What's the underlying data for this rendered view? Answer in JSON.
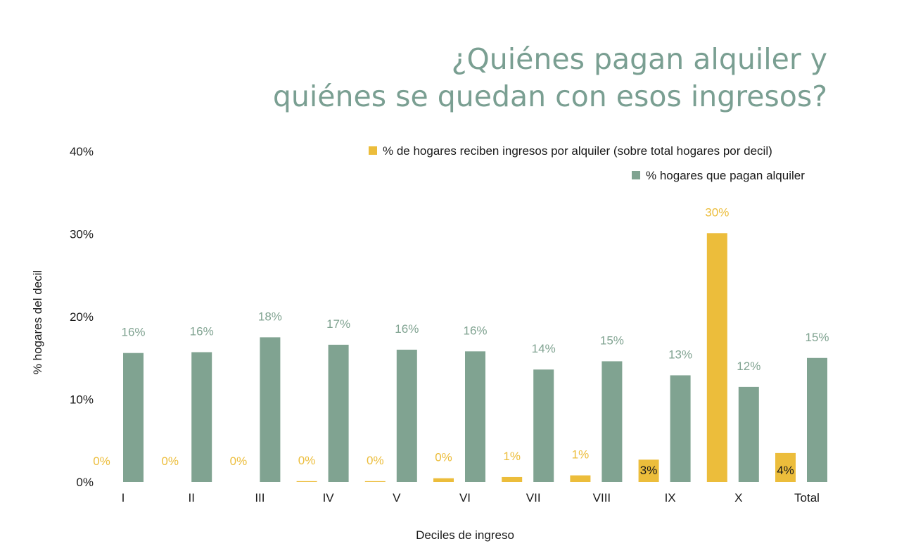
{
  "chart_data": {
    "type": "bar",
    "title": [
      "¿Quiénes pagan alquiler y",
      "quiénes se quedan con esos ingresos?"
    ],
    "xlabel": "Deciles de ingreso",
    "ylabel": "% hogares del decil",
    "ylim": [
      0,
      40
    ],
    "yticks": [
      "0%",
      "10%",
      "20%",
      "30%",
      "40%"
    ],
    "ytick_values": [
      0,
      10,
      20,
      30,
      40
    ],
    "grid": false,
    "legend_position": "top-right",
    "categories": [
      "I",
      "II",
      "III",
      "IV",
      "V",
      "VI",
      "VII",
      "VIII",
      "IX",
      "X",
      "Total"
    ],
    "series": [
      {
        "name": "% de hogares reciben ingresos por alquiler (sobre total hogares por decil)",
        "color": "#ecbd3b",
        "values": [
          0,
          0,
          0,
          0.1,
          0.1,
          0.45,
          0.6,
          0.8,
          2.7,
          30.1,
          3.5
        ],
        "labels": [
          "0%",
          "0%",
          "0%",
          "0%",
          "0%",
          "0%",
          "1%",
          "1%",
          "3%",
          "30%",
          "4%"
        ]
      },
      {
        "name": "% hogares que pagan alquiler",
        "color": "#80a391",
        "values": [
          15.6,
          15.7,
          17.5,
          16.6,
          16.0,
          15.8,
          13.6,
          14.6,
          12.9,
          11.5,
          15.0
        ],
        "labels": [
          "16%",
          "16%",
          "18%",
          "17%",
          "16%",
          "16%",
          "14%",
          "15%",
          "13%",
          "12%",
          "15%"
        ]
      }
    ]
  }
}
